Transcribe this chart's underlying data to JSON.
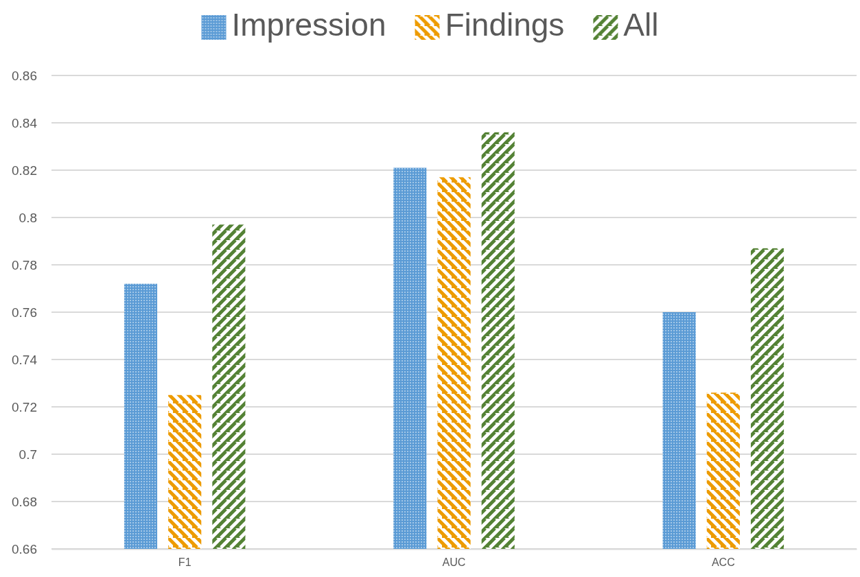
{
  "chart_data": {
    "type": "bar",
    "categories": [
      "F1",
      "AUC",
      "ACC"
    ],
    "series": [
      {
        "name": "Impression",
        "color": "#5b9bd5",
        "values": [
          0.772,
          0.821,
          0.76
        ]
      },
      {
        "name": "Findings",
        "color": "#ed9b00",
        "values": [
          0.725,
          0.817,
          0.726
        ]
      },
      {
        "name": "All",
        "color": "#548235",
        "values": [
          0.797,
          0.836,
          0.787
        ]
      }
    ],
    "ylim": [
      0.66,
      0.86
    ],
    "yticks": [
      0.66,
      0.68,
      0.7,
      0.72,
      0.74,
      0.76,
      0.78,
      0.8,
      0.82,
      0.84,
      0.86
    ],
    "grid": "y",
    "legend": "top"
  }
}
